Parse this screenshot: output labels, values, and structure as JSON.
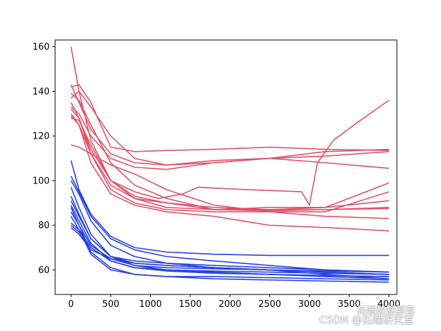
{
  "chart_data": {
    "type": "line",
    "title": "",
    "xlabel": "",
    "ylabel": "",
    "xlim": [
      -200,
      4100
    ],
    "ylim": [
      49,
      163
    ],
    "x_ticks": [
      0,
      500,
      1000,
      1500,
      2000,
      2500,
      3000,
      3500,
      4000
    ],
    "y_ticks": [
      60,
      80,
      100,
      120,
      140,
      160
    ],
    "grid": false,
    "legend": "none",
    "colors": {
      "red": "#e05068",
      "blue": "#2440e0"
    },
    "series": [
      {
        "color": "red",
        "x": [
          0,
          100,
          250,
          500,
          800,
          1200,
          1800,
          2500,
          3200,
          4000
        ],
        "y": [
          160,
          140,
          118,
          100,
          92,
          88,
          87,
          87,
          87,
          87.5
        ]
      },
      {
        "color": "red",
        "x": [
          0,
          100,
          250,
          500,
          800,
          1200,
          1800,
          2500,
          3200,
          4000
        ],
        "y": [
          143,
          135,
          123,
          112,
          108,
          107,
          109,
          110,
          111,
          113
        ]
      },
      {
        "color": "red",
        "x": [
          0,
          100,
          250,
          500,
          800,
          1200,
          1800,
          2500,
          3200,
          4000
        ],
        "y": [
          142,
          143,
          135,
          115,
          113,
          113.5,
          114,
          115,
          114,
          113.5
        ]
      },
      {
        "color": "red",
        "x": [
          0,
          100,
          250,
          500,
          800,
          1200,
          1800,
          2500,
          3200,
          4000
        ],
        "y": [
          137,
          140,
          133,
          120,
          110,
          107,
          108,
          110,
          108,
          105.5
        ]
      },
      {
        "color": "red",
        "x": [
          0,
          100,
          250,
          500,
          800,
          1200,
          1800,
          2500,
          3200,
          4000
        ],
        "y": [
          133,
          130,
          120,
          110,
          106,
          105,
          108,
          110,
          113,
          114
        ]
      },
      {
        "color": "red",
        "x": [
          0,
          100,
          250,
          500,
          800,
          1200,
          1800,
          2500,
          3200,
          4000
        ],
        "y": [
          130,
          125,
          112,
          98,
          92,
          90,
          88,
          87,
          88,
          91
        ]
      },
      {
        "color": "red",
        "x": [
          0,
          100,
          250,
          500,
          800,
          1200,
          1800,
          2500,
          3200,
          4000
        ],
        "y": [
          128,
          127,
          116,
          100,
          93,
          90,
          87,
          86.5,
          87,
          88
        ]
      },
      {
        "color": "red",
        "x": [
          0,
          100,
          250,
          500,
          800,
          1200,
          1800,
          2500,
          3200,
          4000
        ],
        "y": [
          139,
          136,
          125,
          108,
          98,
          92,
          87,
          88,
          88,
          99
        ]
      },
      {
        "color": "red",
        "x": [
          0,
          100,
          250,
          500,
          800,
          1200,
          1800,
          2500,
          3200,
          4000
        ],
        "y": [
          132,
          128,
          112,
          96,
          90,
          87,
          86,
          86,
          86,
          95
        ]
      },
      {
        "color": "red",
        "x": [
          0,
          100,
          250,
          500,
          800,
          1200,
          1800,
          2500,
          3200,
          4000
        ],
        "y": [
          129,
          125,
          108,
          94,
          89,
          86,
          84,
          80,
          79,
          77.5
        ]
      },
      {
        "color": "red",
        "x": [
          0,
          100,
          250,
          500,
          800,
          1200,
          1800,
          2500,
          3200,
          4000
        ],
        "y": [
          116,
          115,
          112,
          107,
          103,
          96,
          89,
          86,
          84,
          83
        ]
      },
      {
        "color": "red",
        "x": [
          0,
          100,
          250,
          500,
          800,
          1100,
          1400,
          1600,
          2200,
          2900,
          3000,
          3100,
          3300,
          3600,
          4000
        ],
        "y": [
          135,
          128,
          114,
          100,
          95,
          92,
          94,
          97,
          96,
          95,
          89,
          108,
          118,
          126,
          136
        ]
      },
      {
        "color": "blue",
        "x": [
          0,
          100,
          250,
          500,
          800,
          1200,
          1800,
          2500,
          3200,
          4000
        ],
        "y": [
          109,
          96,
          85,
          75,
          70,
          68,
          67,
          66.5,
          66.5,
          66.5
        ]
      },
      {
        "color": "blue",
        "x": [
          0,
          100,
          250,
          500,
          800,
          1200,
          1800,
          2500,
          3200,
          4000
        ],
        "y": [
          102,
          95,
          84,
          74,
          69,
          66,
          64,
          62,
          60,
          59
        ]
      },
      {
        "color": "blue",
        "x": [
          0,
          100,
          250,
          500,
          800,
          1200,
          1800,
          2500,
          3200,
          4000
        ],
        "y": [
          100,
          94,
          82,
          71,
          66,
          63,
          61,
          60,
          59,
          58
        ]
      },
      {
        "color": "blue",
        "x": [
          0,
          100,
          250,
          500,
          800,
          1200,
          1800,
          2500,
          3200,
          4000
        ],
        "y": [
          97,
          88,
          76,
          66,
          63,
          62,
          61,
          60,
          58,
          56
        ]
      },
      {
        "color": "blue",
        "x": [
          0,
          100,
          250,
          500,
          800,
          1200,
          1800,
          2500,
          3200,
          4000
        ],
        "y": [
          93,
          85,
          74,
          66,
          64,
          63,
          62,
          61,
          60,
          59
        ]
      },
      {
        "color": "blue",
        "x": [
          0,
          100,
          250,
          500,
          800,
          1200,
          1800,
          2500,
          3200,
          4000
        ],
        "y": [
          91,
          84,
          74,
          66,
          62,
          60,
          59,
          58,
          57,
          56
        ]
      },
      {
        "color": "blue",
        "x": [
          0,
          100,
          250,
          500,
          800,
          1200,
          1800,
          2500,
          3200,
          4000
        ],
        "y": [
          89,
          82,
          72,
          64,
          61,
          60,
          59.5,
          59,
          58.5,
          58
        ]
      },
      {
        "color": "blue",
        "x": [
          0,
          100,
          250,
          500,
          800,
          1200,
          1800,
          2500,
          3200,
          4000
        ],
        "y": [
          88,
          80,
          68,
          61,
          58,
          57,
          57,
          56.5,
          56,
          55.5
        ]
      },
      {
        "color": "blue",
        "x": [
          0,
          100,
          250,
          500,
          800,
          1200,
          1800,
          2500,
          3200,
          4000
        ],
        "y": [
          86,
          80,
          71,
          65,
          62,
          61,
          60.5,
          60,
          59.5,
          59
        ]
      },
      {
        "color": "blue",
        "x": [
          0,
          100,
          250,
          500,
          800,
          1200,
          1800,
          2500,
          3200,
          4000
        ],
        "y": [
          84,
          78,
          67,
          60,
          58,
          57,
          56,
          55.5,
          55,
          54.5
        ]
      },
      {
        "color": "blue",
        "x": [
          0,
          100,
          250,
          500,
          800,
          1200,
          1800,
          2500,
          3200,
          4000
        ],
        "y": [
          81,
          78,
          70,
          64,
          61,
          59.5,
          58.5,
          58,
          57.5,
          57
        ]
      },
      {
        "color": "blue",
        "x": [
          0,
          100,
          250,
          500,
          800,
          1200,
          1800,
          2500,
          3200,
          4000
        ],
        "y": [
          80,
          77,
          70,
          64,
          61,
          60,
          59,
          58,
          57.5,
          57
        ]
      },
      {
        "color": "blue",
        "x": [
          0,
          100,
          250,
          500,
          800,
          1200,
          1800,
          2500,
          3200,
          4000
        ],
        "y": [
          79,
          76,
          69,
          65,
          63,
          62,
          61,
          60,
          59,
          58
        ]
      }
    ]
  },
  "watermark": {
    "line1": "拓端数据部落",
    "line2": "CSDN @拓端研究室"
  }
}
